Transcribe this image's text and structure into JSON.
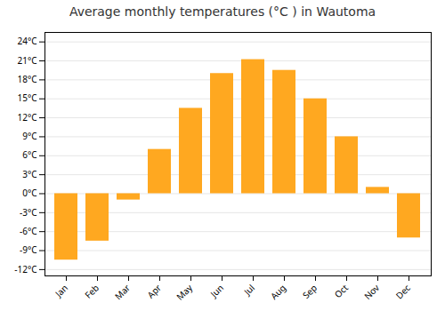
{
  "chart_data": {
    "type": "bar",
    "title": "Average monthly temperatures (°C ) in Wautoma",
    "categories": [
      "Jan",
      "Feb",
      "Mar",
      "Apr",
      "May",
      "Jun",
      "Jul",
      "Aug",
      "Sep",
      "Oct",
      "Nov",
      "Dec"
    ],
    "values": [
      -10.5,
      -7.5,
      -1.0,
      7.0,
      13.5,
      19.0,
      21.2,
      19.5,
      15.0,
      9.0,
      1.0,
      -7.0
    ],
    "color": "#FFA820",
    "ylim": [
      -13,
      25.5
    ],
    "yticks": [
      {
        "value": -12,
        "label": "-12°C"
      },
      {
        "value": -9,
        "label": "-9°C"
      },
      {
        "value": -6,
        "label": "-6°C"
      },
      {
        "value": -3,
        "label": "-3°C"
      },
      {
        "value": 0,
        "label": "0°C"
      },
      {
        "value": 3,
        "label": "3°C"
      },
      {
        "value": 6,
        "label": "6°C"
      },
      {
        "value": 9,
        "label": "9°C"
      },
      {
        "value": 12,
        "label": "12°C"
      },
      {
        "value": 15,
        "label": "15°C"
      },
      {
        "value": 18,
        "label": "18°C"
      },
      {
        "value": 21,
        "label": "21°C"
      },
      {
        "value": 24,
        "label": "24°C"
      }
    ],
    "grid": true
  }
}
